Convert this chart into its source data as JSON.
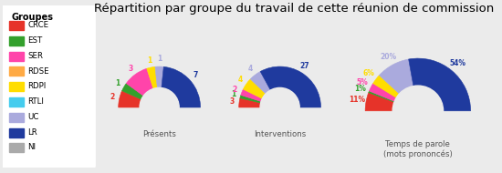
{
  "title": "Répartition par groupe du travail de cette réunion de commission",
  "groups": [
    "CRCE",
    "EST",
    "SER",
    "RDSE",
    "RDPI",
    "RTLI",
    "UC",
    "LR",
    "NI"
  ],
  "colors": [
    "#e63329",
    "#33a02c",
    "#ff44aa",
    "#ffaa44",
    "#ffdd00",
    "#44ccee",
    "#aaaadd",
    "#1f3a9e",
    "#aaaaaa"
  ],
  "presents": [
    2,
    1,
    3,
    0,
    1,
    0,
    1,
    7,
    0
  ],
  "interventions": [
    3,
    1,
    2,
    0,
    4,
    0,
    4,
    27,
    0
  ],
  "temps": [
    11,
    1,
    5,
    0,
    6,
    0,
    20,
    54,
    0
  ],
  "chart_labels": [
    "Présents",
    "Interventions",
    "Temps de parole\n(mots prononcés)"
  ],
  "bg_color": "#ebebeb",
  "title_fontsize": 9.5,
  "label_fontsize": 7
}
